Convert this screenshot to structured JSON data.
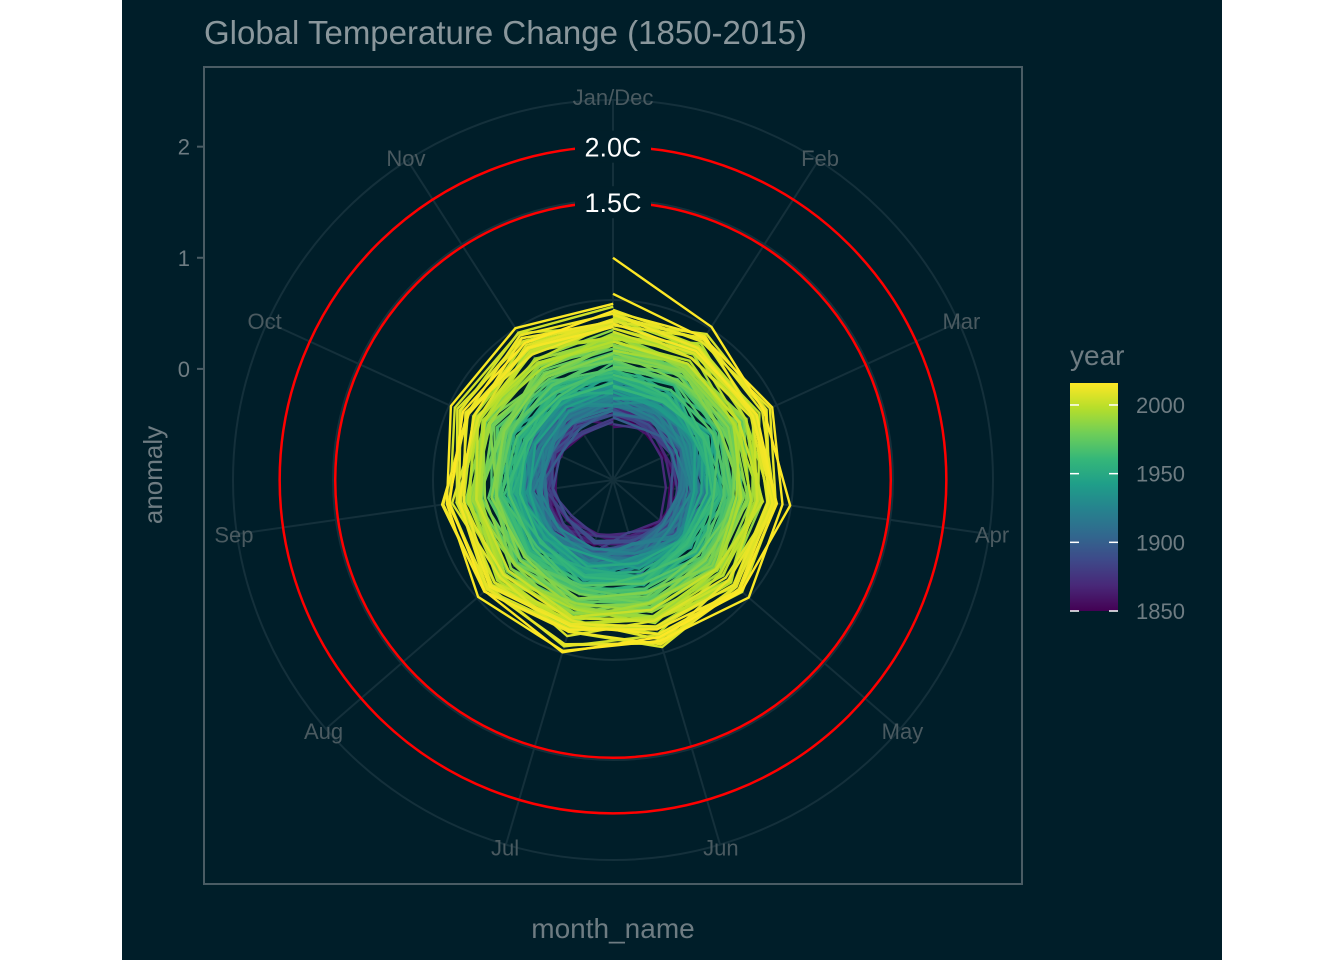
{
  "colors": {
    "background": "#001e29",
    "plot_border": "#4a5c64",
    "grid": "#14303b",
    "text_muted": "#6e7c82",
    "month_text": "#4a5a60",
    "title_text": "#8a979c",
    "threshold": "#ff0000",
    "threshold_label": "#ffffff"
  },
  "chart_data": {
    "type": "line",
    "coord": "polar",
    "title": "Global Temperature Change (1850-2015)",
    "xlabel": "month_name",
    "ylabel": "anomaly",
    "months": [
      "Jan/Dec",
      "Feb",
      "Mar",
      "Apr",
      "May",
      "Jun",
      "Jul",
      "Aug",
      "Sep",
      "Oct",
      "Nov"
    ],
    "y_ticks": [
      0,
      1,
      2
    ],
    "r_range": [
      -1,
      2.6
    ],
    "grid": true,
    "thresholds": [
      {
        "label": "1.5C",
        "value": 1.5
      },
      {
        "label": "2.0C",
        "value": 2.0
      }
    ],
    "legend": {
      "title": "year",
      "position": "right",
      "ticks": [
        1850,
        1900,
        1950,
        2000
      ],
      "range": [
        1850,
        2016
      ],
      "palette": "viridis"
    },
    "series_model": {
      "year_start": 1850,
      "year_end": 2016,
      "baseline_start": -0.35,
      "baseline_end": 0.55,
      "final_year_peak": 1.0,
      "monthly_noise": 0.1
    }
  }
}
